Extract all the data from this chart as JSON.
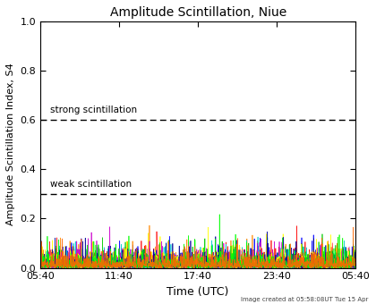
{
  "title": "Amplitude Scintillation, Niue",
  "xlabel": "Time (UTC)",
  "ylabel": "Amplitude Scintillation Index, S4",
  "ylim": [
    0.0,
    1.0
  ],
  "yticks": [
    0.0,
    0.2,
    0.4,
    0.6,
    0.8,
    1.0
  ],
  "xtick_labels": [
    "05:40",
    "11:40",
    "17:40",
    "23:40",
    "05:40"
  ],
  "strong_threshold": 0.6,
  "weak_threshold": 0.3,
  "strong_label": "strong scintillation",
  "weak_label": "weak scintillation",
  "footer_text": "Image created at 05:58:08UT Tue 15 Apr",
  "background_color": "#ffffff",
  "plot_bg_color": "#ffffff",
  "noise_colors": [
    "#ff0000",
    "#0000ff",
    "#00cc00",
    "#ff8800",
    "#00cccc",
    "#cc00cc",
    "#ffff00",
    "#000099",
    "#00ff00",
    "#ff6600"
  ],
  "noise_scale": 0.018,
  "n_points": 1440,
  "spike_amplitude": 0.12,
  "spike_probability": 0.008
}
